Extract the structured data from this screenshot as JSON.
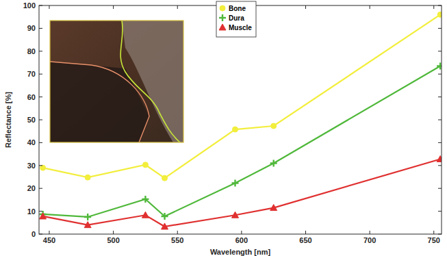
{
  "chart_data": {
    "type": "line",
    "x_label": "Wavelength [nm]",
    "y_label": "Reflectance [%]",
    "x": [
      445,
      480,
      525,
      540,
      595,
      625,
      755
    ],
    "series": [
      {
        "name": "Bone",
        "color": "#f2ee3c",
        "marker": "circle",
        "values": [
          29.0,
          24.8,
          30.3,
          24.5,
          45.8,
          47.3,
          96.0
        ]
      },
      {
        "name": "Dura",
        "color": "#4fb83a",
        "marker": "plus",
        "values": [
          8.7,
          7.5,
          15.3,
          7.8,
          22.3,
          31.0,
          73.5
        ]
      },
      {
        "name": "Muscle",
        "color": "#e03030",
        "marker": "triangle",
        "values": [
          7.8,
          4.0,
          8.3,
          3.3,
          8.3,
          11.5,
          32.8
        ]
      }
    ],
    "xlim": [
      442,
      756
    ],
    "xticks": [
      450,
      500,
      550,
      600,
      650,
      700,
      750
    ],
    "ylim": [
      0,
      100
    ],
    "yticks": [
      0,
      10,
      20,
      30,
      40,
      50,
      60,
      70,
      80,
      90,
      100
    ],
    "grid": false,
    "legend": "top"
  }
}
